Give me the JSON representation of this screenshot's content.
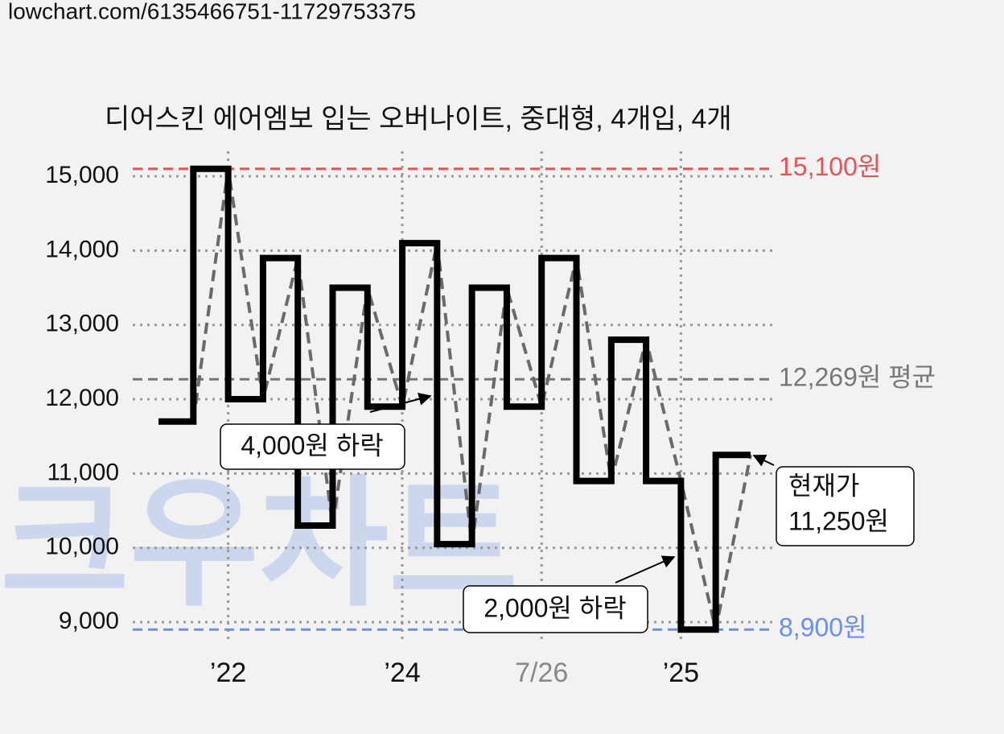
{
  "url": "lowchart.com/6135466751-11729753375",
  "watermark": "크우차트",
  "chart_data": {
    "type": "step",
    "title": "디어스킨 에어엠보 입는 오버나이트, 중대형, 4개입, 4개",
    "x": [
      0,
      1,
      2,
      3,
      4,
      5,
      6,
      7,
      8,
      9,
      10,
      11,
      12,
      13,
      14,
      15,
      16
    ],
    "series": [
      {
        "color": "#000000",
        "values": [
          11700,
          15100,
          12000,
          13900,
          10300,
          13500,
          11900,
          14100,
          10050,
          13500,
          11900,
          13900,
          10900,
          12800,
          10900,
          8900,
          11250
        ]
      }
    ],
    "xlim": [
      -0.74,
      17.74
    ],
    "xticks": [
      {
        "value": 2,
        "label": "’22"
      },
      {
        "value": 7,
        "label": "’24"
      },
      {
        "value": 11,
        "label": "7/26"
      },
      {
        "value": 15,
        "label": "’25"
      }
    ],
    "ylim": [
      8708,
      15336
    ],
    "yticks": [
      {
        "value": 9000,
        "label": "9,000"
      },
      {
        "value": 10000,
        "label": "10,000"
      },
      {
        "value": 11000,
        "label": "11,000"
      },
      {
        "value": 12000,
        "label": "12,000"
      },
      {
        "value": 13000,
        "label": "13,000"
      },
      {
        "value": 14000,
        "label": "14,000"
      },
      {
        "value": 15000,
        "label": "15,000"
      }
    ],
    "grid": true,
    "reference_lines": [
      {
        "value": 15100,
        "label": "15,100원",
        "color": "#e85454"
      },
      {
        "value": 12269,
        "label": "12,269원 평균",
        "color": "#777777"
      },
      {
        "value": 8900,
        "label": "8,900원",
        "color": "#6b8ff0"
      }
    ],
    "annotations": [
      {
        "text": "4,000원 하락"
      },
      {
        "text": "2,000원 하락"
      },
      {
        "text": [
          "현재가",
          "11,250원"
        ]
      }
    ]
  }
}
